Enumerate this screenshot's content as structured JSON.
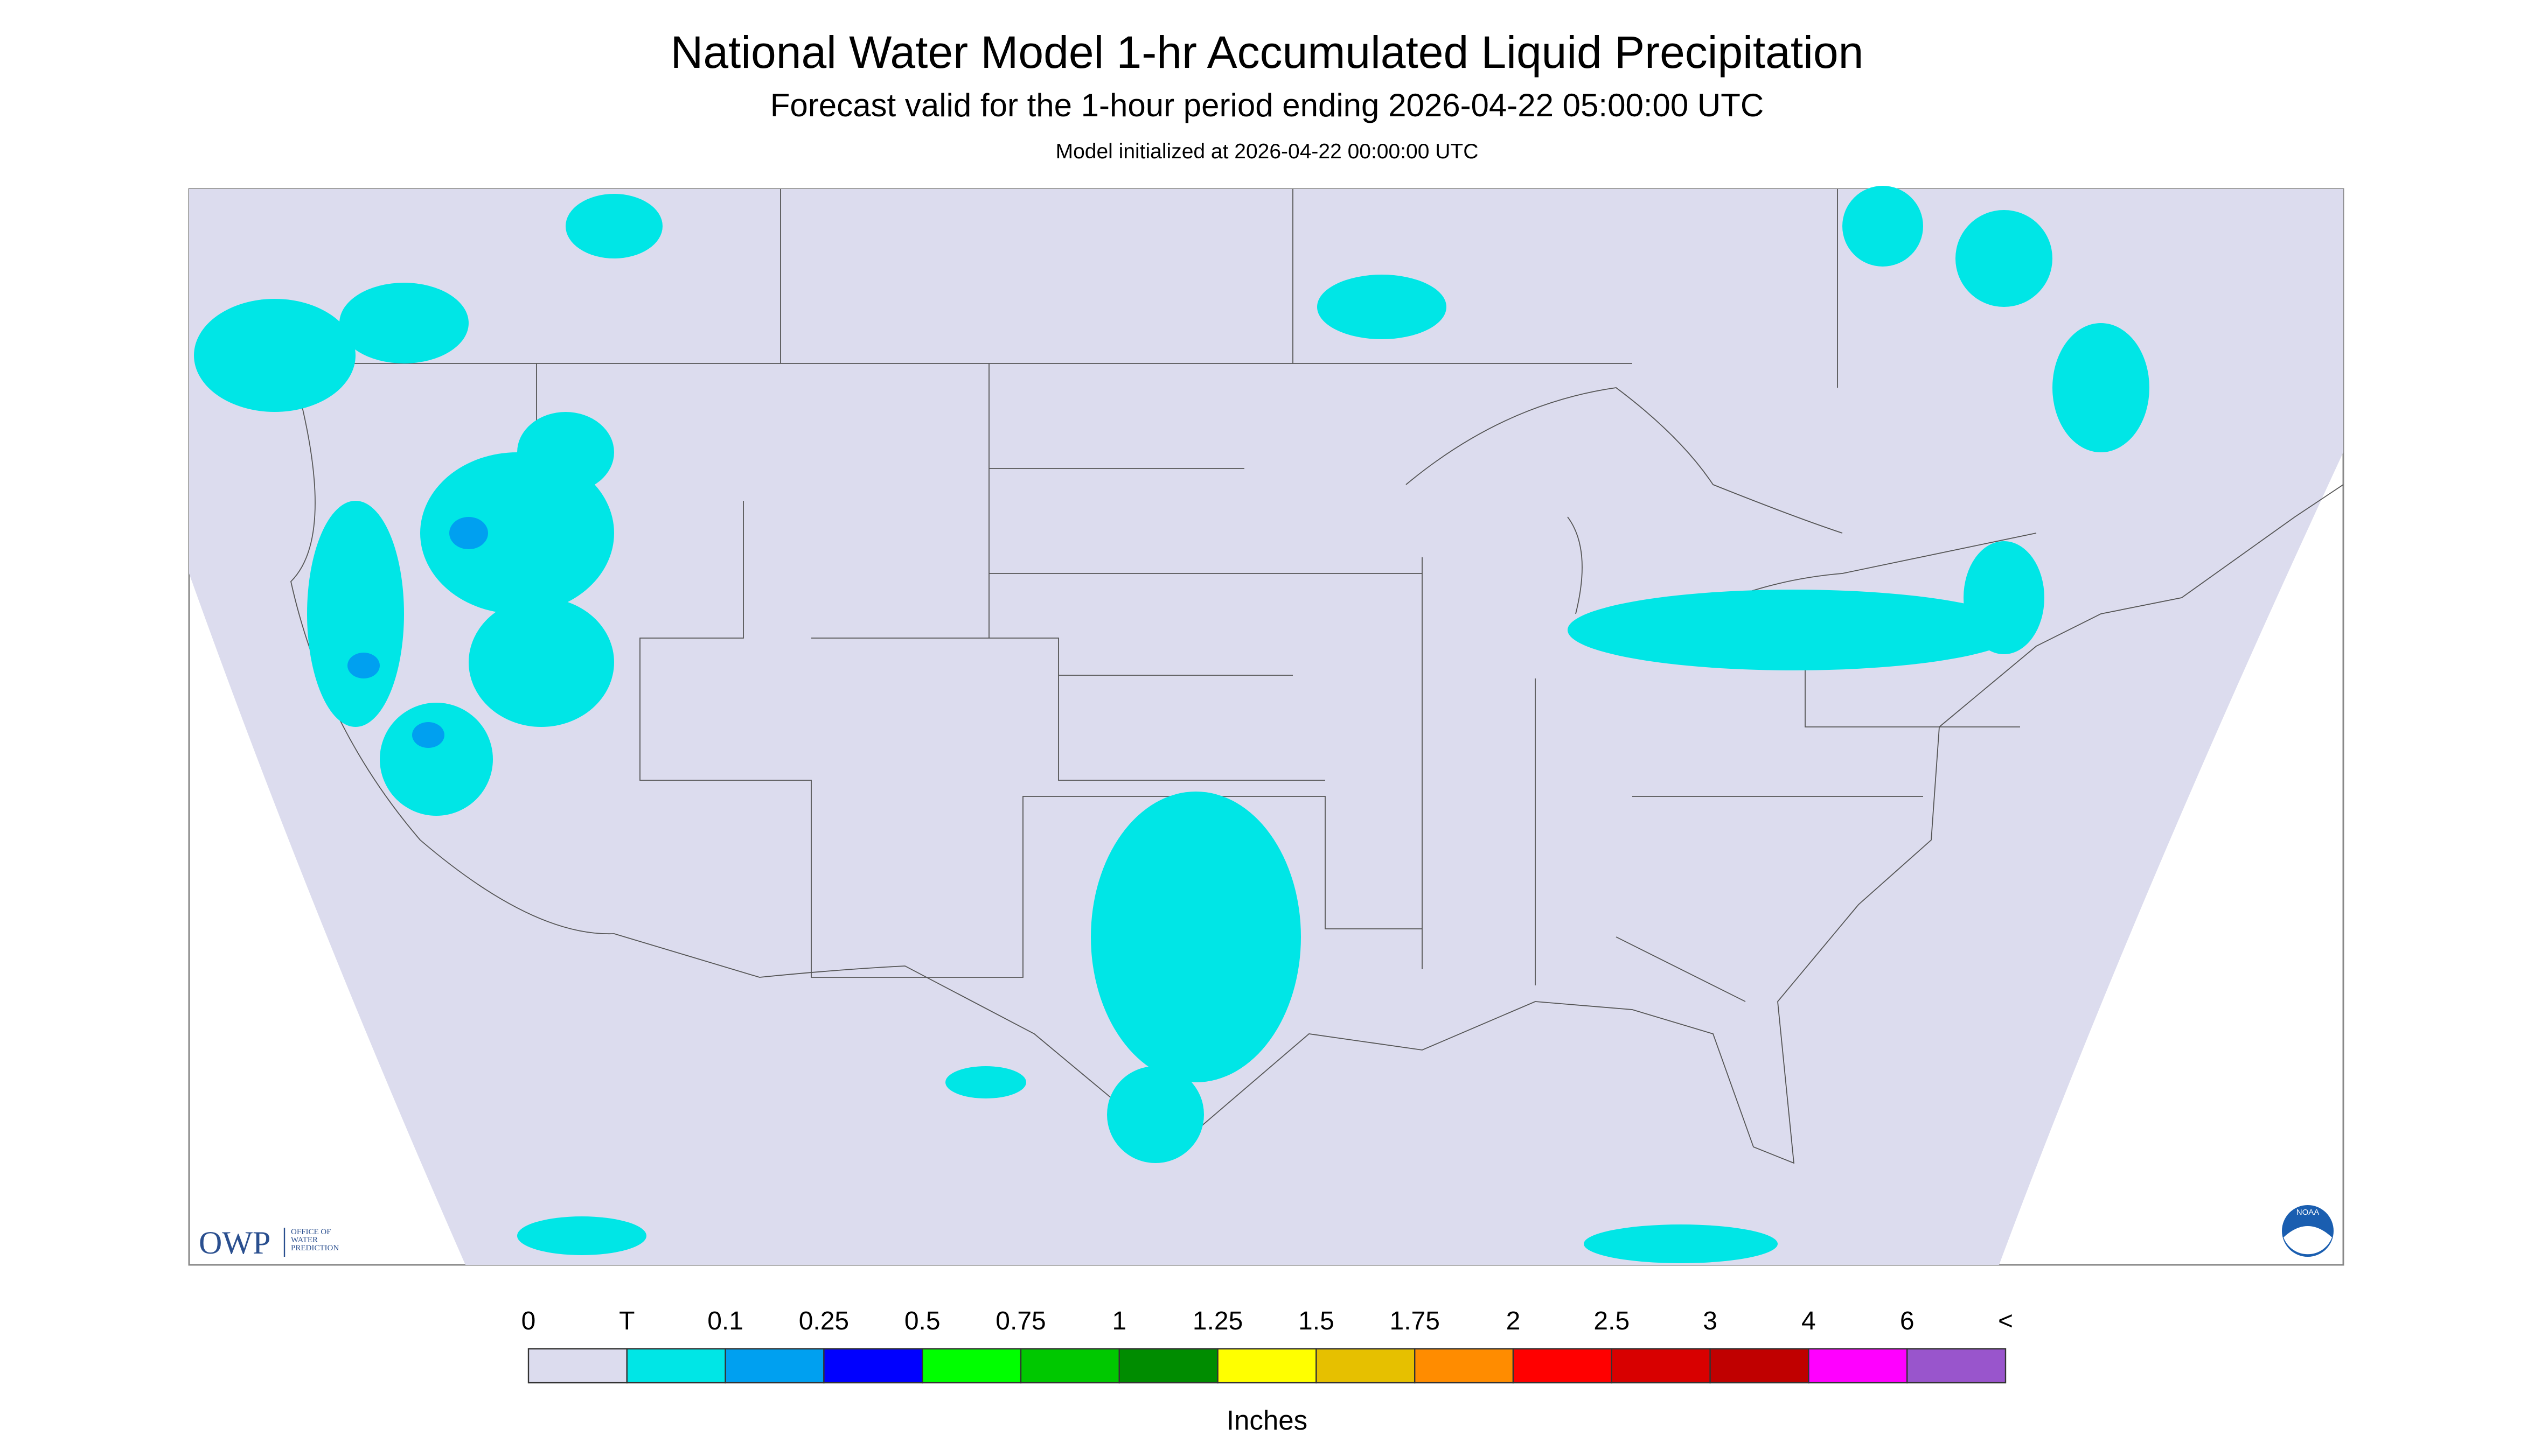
{
  "header": {
    "title": "National Water Model 1-hr Accumulated Liquid Precipitation",
    "subtitle": "Forecast valid for the 1-hour period ending 2026-04-22 05:00:00 UTC",
    "init": "Model initialized at 2026-04-22 00:00:00 UTC"
  },
  "logo": {
    "owp": "OWP",
    "lines": [
      "OFFICE OF",
      "WATER",
      "PREDICTION"
    ],
    "noaa": "NOAA"
  },
  "legend": {
    "labels": [
      "0",
      "T",
      "0.1",
      "0.25",
      "0.5",
      "0.75",
      "1",
      "1.25",
      "1.5",
      "1.75",
      "2",
      "2.5",
      "3",
      "4",
      "6",
      "<"
    ],
    "colors": [
      "#dcdcee",
      "#00e6e6",
      "#00a0f0",
      "#0000ff",
      "#00ff00",
      "#00c800",
      "#008c00",
      "#ffff00",
      "#e6c000",
      "#ff8c00",
      "#ff0000",
      "#d80000",
      "#c00000",
      "#ff00ff",
      "#9955cc"
    ],
    "units": "Inches"
  }
}
